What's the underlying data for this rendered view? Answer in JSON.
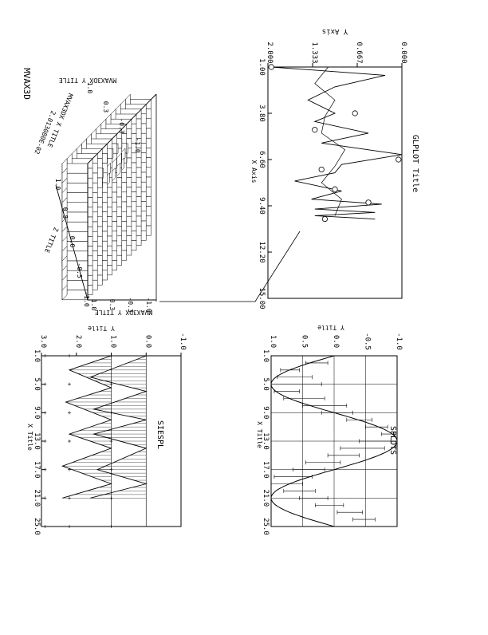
{
  "chart_data": [
    {
      "type": "line",
      "title": "GLPLOT Title",
      "xlabel": "X Axis",
      "ylabel": "Y Axis",
      "xlim": [
        1.0,
        15.0
      ],
      "ylim": [
        0.0,
        2.0
      ],
      "xticks": [
        "1.00",
        "3.80",
        "6.60",
        "9.40",
        "12.20",
        "15.00"
      ],
      "yticks": [
        "0.000",
        "0.667",
        "1.333",
        "2.000"
      ],
      "series": [
        {
          "x": [
            1.0,
            1.5,
            2.2,
            3.0,
            3.8,
            4.3,
            5.0,
            5.6,
            6.3,
            6.9,
            7.4,
            7.9,
            8.5,
            9.0,
            9.3,
            9.6,
            9.8,
            10.0,
            10.2
          ],
          "y": [
            1.95,
            0.25,
            1.0,
            1.4,
            1.0,
            1.3,
            0.5,
            1.2,
            0.0,
            0.9,
            1.0,
            1.6,
            0.9,
            1.35,
            0.3,
            1.3,
            0.4,
            1.3,
            0.4
          ]
        },
        {
          "x": [
            1.0,
            2.0,
            3.0,
            4.0,
            5.0,
            6.0,
            7.0,
            8.0,
            9.0,
            10.0
          ],
          "y": [
            1.1,
            1.3,
            1.0,
            1.15,
            1.2,
            0.85,
            1.0,
            1.2,
            0.9,
            1.0
          ]
        }
      ],
      "markers": {
        "x": [
          1.0,
          3.8,
          4.8,
          6.6,
          7.2,
          8.4,
          9.2,
          10.2
        ],
        "y": [
          1.95,
          0.7,
          1.3,
          0.05,
          1.2,
          1.0,
          0.5,
          1.15
        ]
      }
    },
    {
      "type": "bar3d",
      "title": "MVAX3D",
      "xlabel": "MVAX3DX X TITLE",
      "ylabel": "MVAX3DX Y TITLE",
      "zlabel": "Z TITLE",
      "x_tick_labels": [
        "1.0",
        "0.3",
        "-0.3",
        "-1.0"
      ],
      "z_tick_labels": [
        "-1.0",
        "-0.5",
        "0.0",
        "0.5",
        "1.0"
      ],
      "axis_number_label": "2.013080E-02",
      "grid": {
        "rows": 14,
        "cols": 14,
        "function": "sin(x)*cos(y)"
      }
    },
    {
      "type": "line",
      "title": "SIESPL",
      "xlabel": "X Title",
      "ylabel": "Y Title",
      "xlim": [
        1.0,
        25.0
      ],
      "ylim": [
        -1.0,
        3.0
      ],
      "xticks": [
        "1.0",
        "5.0",
        "9.0",
        "13.0",
        "17.0",
        "21.0",
        "25.0"
      ],
      "yticks": [
        "-1.0",
        "0.0",
        "1.0",
        "2.0",
        "3.0"
      ],
      "series": [
        {
          "x": [
            1,
            4,
            6,
            8.5,
            10,
            12,
            14,
            17,
            19,
            21
          ],
          "y": [
            0.0,
            1.6,
            0.0,
            1.5,
            0.0,
            1.5,
            0.0,
            1.4,
            0.0,
            1.6
          ]
        },
        {
          "x": [
            1,
            3,
            5.5,
            7.5,
            10,
            12,
            14,
            16.5,
            19,
            21
          ],
          "y": [
            1.0,
            2.2,
            1.0,
            2.3,
            1.0,
            2.2,
            1.0,
            2.4,
            1.0,
            2.4
          ]
        }
      ],
      "cross_markers_y": [
        1.0,
        2.2,
        2.9
      ]
    },
    {
      "type": "line",
      "title": "SPLDTS",
      "xlabel": "X Title",
      "ylabel": "Y Title",
      "xlim": [
        1.0,
        25.0
      ],
      "ylim": [
        -1.0,
        1.0
      ],
      "xticks": [
        "1.0",
        "5.0",
        "9.0",
        "13.0",
        "17.0",
        "21.0",
        "25.0"
      ],
      "yticks": [
        "-1.0",
        "-0.5",
        "0.0",
        "0.5",
        "1.0"
      ],
      "curve": "sine",
      "period": 16,
      "error_bars": [
        {
          "x": 2.0,
          "lo": 0.1,
          "hi": 0.45
        },
        {
          "x": 3.0,
          "lo": 0.55,
          "hi": 0.85
        },
        {
          "x": 4.0,
          "lo": 0.35,
          "hi": 0.9
        },
        {
          "x": 5.0,
          "lo": 0.2,
          "hi": 1.0
        },
        {
          "x": 6.0,
          "lo": 0.55,
          "hi": 0.95
        },
        {
          "x": 7.0,
          "lo": 0.15,
          "hi": 0.8
        },
        {
          "x": 8.0,
          "lo": -0.2,
          "hi": 0.5
        },
        {
          "x": 9.0,
          "lo": -0.3,
          "hi": 0.2
        },
        {
          "x": 10.0,
          "lo": -0.6,
          "hi": -0.2
        },
        {
          "x": 11.0,
          "lo": -0.85,
          "hi": -0.5
        },
        {
          "x": 12.0,
          "lo": -0.95,
          "hi": -0.75
        },
        {
          "x": 13.0,
          "lo": -0.9,
          "hi": -0.4
        },
        {
          "x": 14.0,
          "lo": -0.8,
          "hi": -0.1
        },
        {
          "x": 15.0,
          "lo": -0.4,
          "hi": 0.1
        },
        {
          "x": 16.0,
          "lo": -0.1,
          "hi": 0.45
        },
        {
          "x": 17.0,
          "lo": 0.15,
          "hi": 0.65
        },
        {
          "x": 18.0,
          "lo": 0.35,
          "hi": 0.95
        },
        {
          "x": 19.0,
          "lo": 0.5,
          "hi": 1.0
        },
        {
          "x": 20.0,
          "lo": 0.3,
          "hi": 0.8
        },
        {
          "x": 21.0,
          "lo": 0.1,
          "hi": 0.55
        },
        {
          "x": 22.0,
          "lo": -0.15,
          "hi": 0.3
        },
        {
          "x": 23.0,
          "lo": -0.45,
          "hi": -0.05
        },
        {
          "x": 24.0,
          "lo": -0.65,
          "hi": -0.3
        }
      ]
    }
  ]
}
